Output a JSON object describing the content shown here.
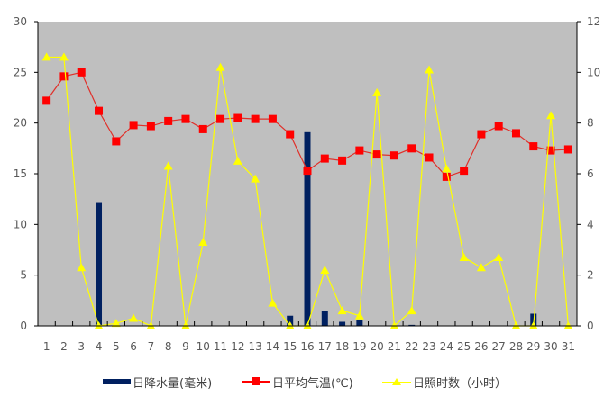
{
  "chart_data": {
    "type": "bar+line",
    "title": "",
    "categories": [
      "1",
      "2",
      "3",
      "4",
      "5",
      "6",
      "7",
      "8",
      "9",
      "10",
      "11",
      "12",
      "13",
      "14",
      "15",
      "16",
      "17",
      "18",
      "19",
      "20",
      "21",
      "22",
      "23",
      "24",
      "25",
      "26",
      "27",
      "28",
      "29",
      "30",
      "31"
    ],
    "left_axis": {
      "min": 0,
      "max": 30,
      "step": 5,
      "ticks": [
        "0",
        "5",
        "10",
        "15",
        "20",
        "25",
        "30"
      ]
    },
    "right_axis": {
      "min": 0,
      "max": 12,
      "step": 2,
      "ticks": [
        "0",
        "2",
        "4",
        "6",
        "8",
        "10",
        "12"
      ]
    },
    "series": [
      {
        "name": "日降水量(毫米)",
        "type": "bar",
        "axis": "left",
        "color": "#002060",
        "values": [
          0,
          0,
          0,
          12.2,
          0,
          0,
          0,
          0,
          0,
          0,
          0,
          0,
          0,
          0,
          1.0,
          19.1,
          1.5,
          0.4,
          0.6,
          0,
          0,
          0.1,
          0,
          0,
          0,
          0,
          0,
          0,
          1.2,
          0,
          0
        ]
      },
      {
        "name": "日平均气温(℃)",
        "type": "line",
        "axis": "left",
        "color": "#FF0000",
        "marker": "square",
        "values": [
          22.2,
          24.6,
          25.0,
          21.2,
          18.2,
          19.8,
          19.7,
          20.2,
          20.4,
          19.4,
          20.4,
          20.5,
          20.4,
          20.4,
          18.9,
          15.3,
          16.5,
          16.3,
          17.3,
          16.9,
          16.8,
          17.5,
          16.6,
          14.7,
          15.3,
          18.9,
          19.7,
          19.0,
          17.7,
          17.3,
          17.4
        ]
      },
      {
        "name": "日照时数（小时）",
        "type": "line",
        "axis": "right",
        "color": "#FFFF00",
        "marker": "triangle",
        "values": [
          10.6,
          10.6,
          2.3,
          0,
          0.1,
          0.3,
          0,
          6.3,
          0,
          3.3,
          10.2,
          6.5,
          5.8,
          0.9,
          0,
          0,
          2.2,
          0.6,
          0.4,
          9.2,
          0,
          0.6,
          10.1,
          6.2,
          2.7,
          2.3,
          2.7,
          0,
          0,
          8.3,
          0
        ]
      }
    ],
    "plot_background": "#BFBFBF",
    "grid": false,
    "legend_position": "bottom"
  },
  "legend": {
    "items": [
      {
        "label": "日降水量(毫米)",
        "color": "#002060"
      },
      {
        "label": "日平均气温(℃)",
        "color": "#FF0000"
      },
      {
        "label": "日照时数（小时）",
        "color": "#FFFF00"
      }
    ]
  }
}
